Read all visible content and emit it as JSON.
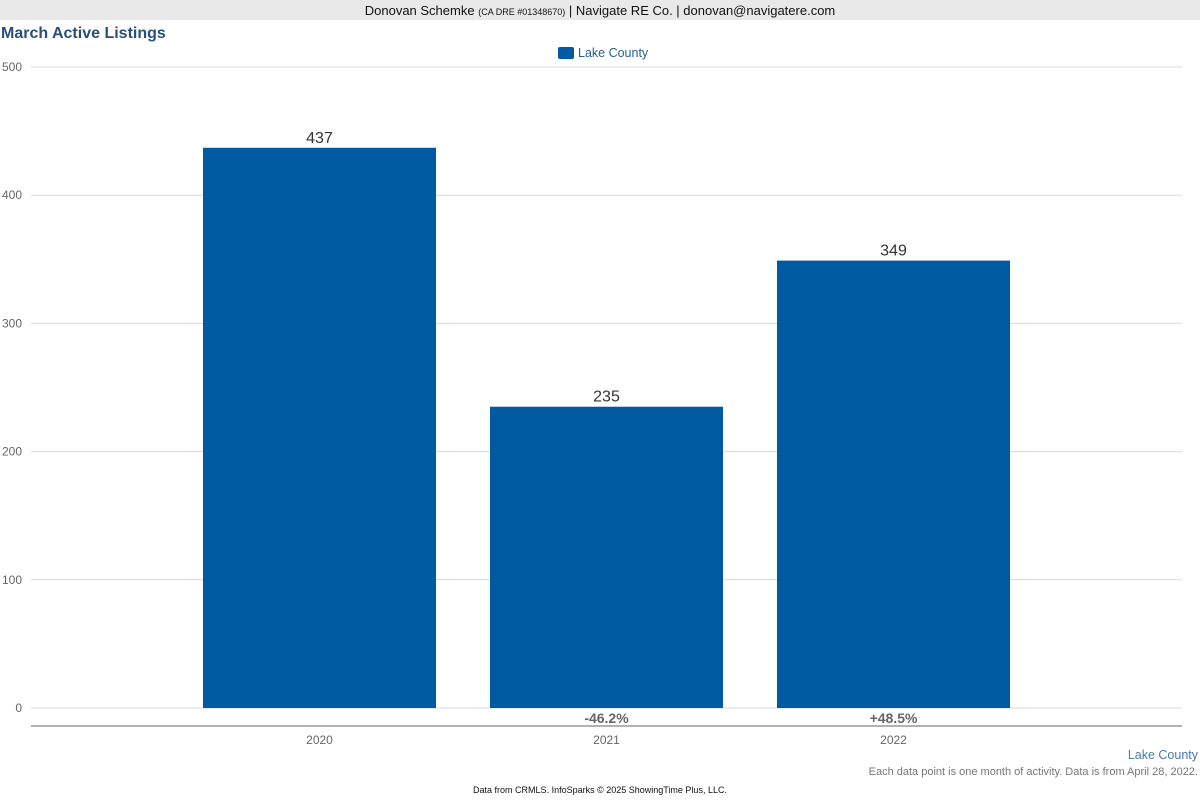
{
  "header": {
    "agent_name": "Donovan Schemke",
    "license": "(CA DRE #01348670)",
    "rest": "| Navigate RE Co. | donovan@navigatere.com"
  },
  "colors": {
    "bar": "#005aa2",
    "title": "#2a4e78",
    "grid": "#d9d9d9",
    "axis": "#666666"
  },
  "chart_data": {
    "type": "bar",
    "title": "March Active Listings",
    "categories": [
      "2020",
      "2021",
      "2022"
    ],
    "series": [
      {
        "name": "Lake County",
        "values": [
          437,
          235,
          349
        ]
      }
    ],
    "change_labels": [
      "",
      "-46.2%",
      "+48.5%"
    ],
    "ylim": [
      0,
      500
    ],
    "yticks": [
      0,
      100,
      200,
      300,
      400,
      500
    ],
    "grid": true,
    "legend_position": "top-center"
  },
  "footer": {
    "region": "Lake County",
    "note": "Each data point is one month of activity. Data is from April 28, 2022.",
    "source": "Data from CRMLS. InfoSparks © 2025 ShowingTime Plus, LLC."
  }
}
